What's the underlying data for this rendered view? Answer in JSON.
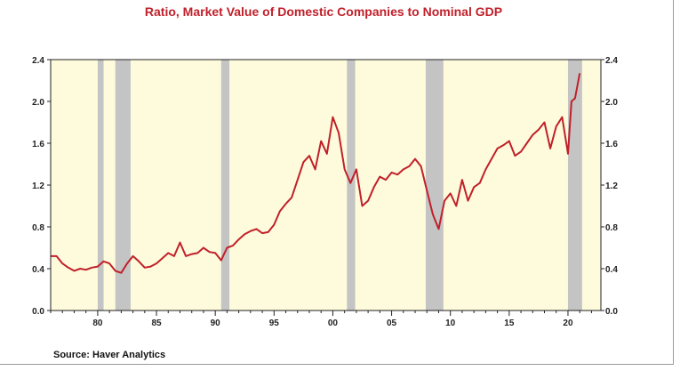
{
  "chart_data": {
    "type": "line",
    "title": "Ratio, Market Value of Domestic Companies to Nominal GDP",
    "source": "Source: Haver Analytics",
    "xlabel": "",
    "ylabel": "",
    "xlim": [
      1976.0,
      2022.8
    ],
    "ylim": [
      0.0,
      2.4
    ],
    "yticks": [
      0.0,
      0.4,
      0.8,
      1.2,
      1.6,
      2.0,
      2.4
    ],
    "ytick_labels": [
      "0.0",
      "0.4",
      "0.8",
      "1.2",
      "1.6",
      "2.0",
      "2.4"
    ],
    "xticks": [
      1980,
      1985,
      1990,
      1995,
      2000,
      2005,
      2010,
      2015,
      2020
    ],
    "xtick_labels": [
      "80",
      "85",
      "90",
      "95",
      "00",
      "05",
      "10",
      "15",
      "20"
    ],
    "grid": false,
    "legend": "none",
    "colors": {
      "line": "#c0202a",
      "plot_background": "#fdfbdc",
      "recession": "#c4c4c4",
      "title": "#c0202a"
    },
    "recessions": [
      [
        1980.0,
        1980.5
      ],
      [
        1981.5,
        1982.8
      ],
      [
        1990.5,
        1991.2
      ],
      [
        2001.2,
        2001.9
      ],
      [
        2007.9,
        2009.4
      ],
      [
        2020.0,
        2021.2
      ]
    ],
    "series": [
      {
        "x": [
          1976.0,
          1976.5,
          1977.0,
          1977.5,
          1978.0,
          1978.5,
          1979.0,
          1979.5,
          1980.0,
          1980.5,
          1981.0,
          1981.5,
          1982.0,
          1982.5,
          1983.0,
          1983.5,
          1984.0,
          1984.5,
          1985.0,
          1985.5,
          1986.0,
          1986.5,
          1987.0,
          1987.5,
          1988.0,
          1988.5,
          1989.0,
          1989.5,
          1990.0,
          1990.5,
          1991.0,
          1991.5,
          1992.0,
          1992.5,
          1993.0,
          1993.5,
          1994.0,
          1994.5,
          1995.0,
          1995.5,
          1996.0,
          1996.5,
          1997.0,
          1997.5,
          1998.0,
          1998.5,
          1999.0,
          1999.5,
          2000.0,
          2000.5,
          2001.0,
          2001.5,
          2002.0,
          2002.5,
          2003.0,
          2003.5,
          2004.0,
          2004.5,
          2005.0,
          2005.5,
          2006.0,
          2006.5,
          2007.0,
          2007.5,
          2008.0,
          2008.5,
          2009.0,
          2009.5,
          2010.0,
          2010.5,
          2011.0,
          2011.5,
          2012.0,
          2012.5,
          2013.0,
          2013.5,
          2014.0,
          2014.5,
          2015.0,
          2015.5,
          2016.0,
          2016.5,
          2017.0,
          2017.5,
          2018.0,
          2018.5,
          2019.0,
          2019.5,
          2020.0,
          2020.3,
          2020.6,
          2021.0
        ],
        "values": [
          0.52,
          0.52,
          0.45,
          0.41,
          0.38,
          0.4,
          0.39,
          0.41,
          0.42,
          0.47,
          0.45,
          0.38,
          0.36,
          0.45,
          0.52,
          0.47,
          0.41,
          0.42,
          0.45,
          0.5,
          0.55,
          0.52,
          0.65,
          0.52,
          0.54,
          0.55,
          0.6,
          0.56,
          0.55,
          0.48,
          0.6,
          0.62,
          0.68,
          0.73,
          0.76,
          0.78,
          0.74,
          0.75,
          0.82,
          0.95,
          1.02,
          1.08,
          1.25,
          1.42,
          1.48,
          1.35,
          1.62,
          1.5,
          1.85,
          1.7,
          1.35,
          1.22,
          1.35,
          1.0,
          1.05,
          1.18,
          1.28,
          1.25,
          1.32,
          1.3,
          1.35,
          1.38,
          1.45,
          1.38,
          1.15,
          0.92,
          0.78,
          1.05,
          1.12,
          1.0,
          1.25,
          1.05,
          1.18,
          1.22,
          1.35,
          1.45,
          1.55,
          1.58,
          1.62,
          1.48,
          1.52,
          1.6,
          1.68,
          1.73,
          1.8,
          1.55,
          1.76,
          1.85,
          1.5,
          2.0,
          2.03,
          2.27
        ]
      }
    ]
  }
}
